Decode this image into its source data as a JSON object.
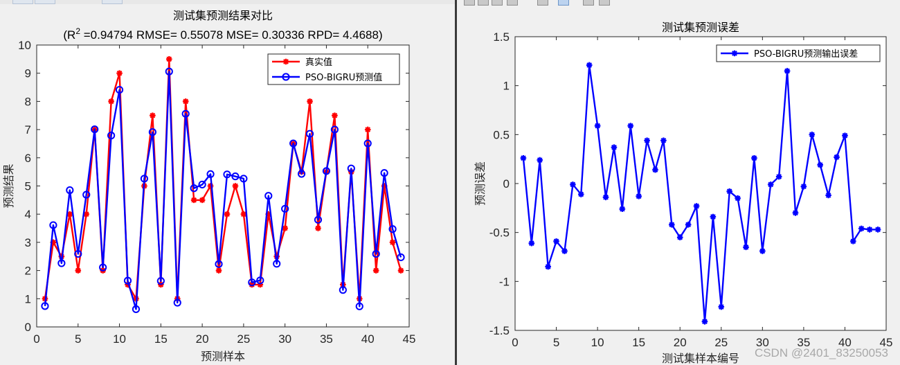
{
  "colors": {
    "true_series": "#ff0000",
    "pred_series": "#0000ff",
    "error_series": "#0000ff",
    "axis": "#262626",
    "plot_background": "#ffffff",
    "figure_background": "#f0f0f0"
  },
  "icons": [
    "toolbar-button-icon",
    "marker-star-icon",
    "marker-circle-icon"
  ],
  "watermark": "CSDN @2401_83250053",
  "chart_data": [
    {
      "type": "line",
      "title": "测试集预测结果对比",
      "subtitle_prefix": "(R",
      "subtitle_sup": "2",
      "subtitle_rest": " =0.94794 RMSE= 0.55078 MSE= 0.30336 RPD= 4.4688)",
      "xlabel": "预测样本",
      "ylabel": "预测结果",
      "xlim": [
        0,
        45
      ],
      "ylim": [
        0,
        10
      ],
      "xticks": [
        0,
        5,
        10,
        15,
        20,
        25,
        30,
        35,
        40,
        45
      ],
      "yticks": [
        0,
        1,
        2,
        3,
        4,
        5,
        6,
        7,
        8,
        9,
        10
      ],
      "grid": false,
      "legend_position": "top-right",
      "x": [
        1,
        2,
        3,
        4,
        5,
        6,
        7,
        8,
        9,
        10,
        11,
        12,
        13,
        14,
        15,
        16,
        17,
        18,
        19,
        20,
        21,
        22,
        23,
        24,
        25,
        26,
        27,
        28,
        29,
        30,
        31,
        32,
        33,
        34,
        35,
        36,
        37,
        38,
        39,
        40,
        41,
        42,
        43,
        44
      ],
      "series": [
        {
          "name": "真实值",
          "marker": "star",
          "color": "#ff0000",
          "values": [
            1,
            3,
            2.5,
            4,
            2,
            4,
            7,
            2,
            8,
            9,
            1.5,
            1,
            5,
            7.5,
            1.5,
            9.5,
            1,
            8,
            4.5,
            4.5,
            5,
            2,
            4,
            5,
            4,
            1.5,
            1.5,
            4,
            2.5,
            3.5,
            6.5,
            5.5,
            8,
            3.5,
            5.5,
            7.5,
            1.5,
            5.5,
            1,
            7,
            2,
            5,
            3,
            2
          ]
        },
        {
          "name": "PSO-BIGRU预测值",
          "marker": "circle",
          "color": "#0000ff",
          "values": [
            0.74,
            3.61,
            2.26,
            4.85,
            2.59,
            4.69,
            7.01,
            2.11,
            6.79,
            8.41,
            1.64,
            0.63,
            5.26,
            6.91,
            1.63,
            9.06,
            0.86,
            7.56,
            4.92,
            5.05,
            5.42,
            2.23,
            5.41,
            5.34,
            5.26,
            1.58,
            1.65,
            4.65,
            2.24,
            4.19,
            6.51,
            5.43,
            6.85,
            3.8,
            5.53,
            7.0,
            1.31,
            5.62,
            0.73,
            6.51,
            2.59,
            5.46,
            3.47,
            2.47
          ]
        }
      ]
    },
    {
      "type": "line",
      "title": "测试集预测误差",
      "xlabel": "测试集样本编号",
      "ylabel": "预测误差",
      "xlim": [
        0,
        45
      ],
      "ylim": [
        -1.5,
        1.5
      ],
      "xticks": [
        0,
        5,
        10,
        15,
        20,
        25,
        30,
        35,
        40,
        45
      ],
      "yticks": [
        -1.5,
        -1,
        -0.5,
        0,
        0.5,
        1,
        1.5
      ],
      "grid": false,
      "legend_position": "top-right",
      "x": [
        1,
        2,
        3,
        4,
        5,
        6,
        7,
        8,
        9,
        10,
        11,
        12,
        13,
        14,
        15,
        16,
        17,
        18,
        19,
        20,
        21,
        22,
        23,
        24,
        25,
        26,
        27,
        28,
        29,
        30,
        31,
        32,
        33,
        34,
        35,
        36,
        37,
        38,
        39,
        40,
        41,
        42,
        43,
        44
      ],
      "series": [
        {
          "name": "PSO-BIGRU预测输出误差",
          "marker": "star",
          "color": "#0000ff",
          "values": [
            0.26,
            -0.61,
            0.24,
            -0.85,
            -0.59,
            -0.69,
            -0.01,
            -0.11,
            1.21,
            0.59,
            -0.14,
            0.37,
            -0.26,
            0.59,
            -0.13,
            0.44,
            0.14,
            0.44,
            -0.42,
            -0.55,
            -0.42,
            -0.23,
            -1.41,
            -0.34,
            -1.26,
            -0.08,
            -0.15,
            -0.65,
            0.26,
            -0.69,
            -0.01,
            0.07,
            1.15,
            -0.3,
            -0.03,
            0.5,
            0.19,
            -0.12,
            0.27,
            0.49,
            -0.59,
            -0.46,
            -0.47,
            -0.47
          ]
        }
      ]
    }
  ]
}
